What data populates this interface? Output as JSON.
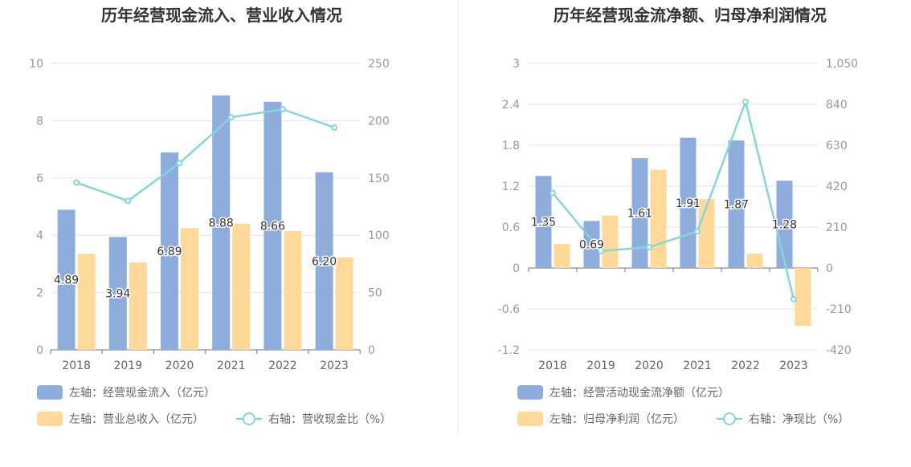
{
  "chart_data": [
    {
      "type": "bar",
      "title": "历年经营现金流入、营业收入情况",
      "categories": [
        "2018",
        "2019",
        "2020",
        "2021",
        "2022",
        "2023"
      ],
      "left_axis": {
        "ylim": [
          0,
          10
        ],
        "ticks": [
          "0",
          "2",
          "4",
          "6",
          "8",
          "10"
        ]
      },
      "right_axis": {
        "ylim": [
          0,
          250
        ],
        "ticks": [
          "0",
          "50",
          "100",
          "150",
          "200",
          "250"
        ]
      },
      "series": [
        {
          "name": "左轴：经营现金流入（亿元）",
          "axis": "left",
          "kind": "bar",
          "color": "#8eaddc",
          "values": [
            4.89,
            3.94,
            6.89,
            8.88,
            8.66,
            6.2
          ],
          "labels": [
            "4.89",
            "3.94",
            "6.89",
            "8.88",
            "8.66",
            "6.20"
          ]
        },
        {
          "name": "左轴：营业总收入（亿元）",
          "axis": "left",
          "kind": "bar",
          "color": "#ffd999",
          "values": [
            3.35,
            3.05,
            4.25,
            4.4,
            4.15,
            3.23
          ]
        },
        {
          "name": "右轴：营收现金比（%）",
          "axis": "right",
          "kind": "line",
          "color": "#88d5d8",
          "values": [
            146,
            130,
            163,
            203,
            210,
            194
          ]
        }
      ]
    },
    {
      "type": "bar",
      "title": "历年经营现金流净额、归母净利润情况",
      "categories": [
        "2018",
        "2019",
        "2020",
        "2021",
        "2022",
        "2023"
      ],
      "left_axis": {
        "ylim": [
          -1.2,
          3
        ],
        "ticks": [
          "-1.2",
          "-0.6",
          "0",
          "0.6",
          "1.2",
          "1.8",
          "2.4",
          "3"
        ]
      },
      "right_axis": {
        "ylim": [
          -420,
          1050
        ],
        "ticks": [
          "-420",
          "-210",
          "0",
          "210",
          "420",
          "630",
          "840",
          "1,050"
        ]
      },
      "series": [
        {
          "name": "左轴：经营活动现金流净额（亿元）",
          "axis": "left",
          "kind": "bar",
          "color": "#8eaddc",
          "values": [
            1.35,
            0.69,
            1.61,
            1.91,
            1.87,
            1.28
          ],
          "labels": [
            "1.35",
            "0.69",
            "1.61",
            "1.91",
            "1.87",
            "1.28"
          ]
        },
        {
          "name": "左轴：归母净利润（亿元）",
          "axis": "left",
          "kind": "bar",
          "color": "#ffd999",
          "values": [
            0.35,
            0.77,
            1.44,
            1.01,
            0.21,
            -0.85
          ]
        },
        {
          "name": "右轴：净现比（%）",
          "axis": "right",
          "kind": "line",
          "color": "#88d5d8",
          "values": [
            385,
            87,
            107,
            188,
            853,
            -160
          ]
        }
      ]
    }
  ]
}
